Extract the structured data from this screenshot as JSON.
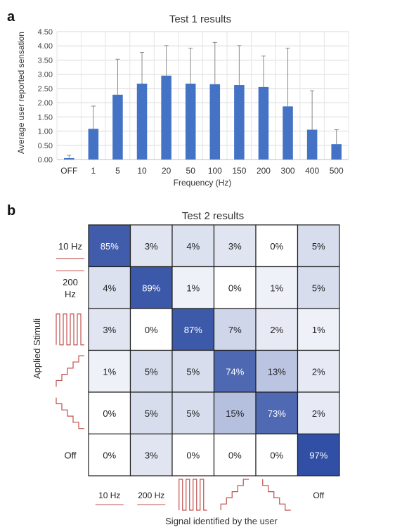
{
  "panel_labels": {
    "a": "a",
    "b": "b"
  },
  "chart_data": [
    {
      "type": "bar",
      "title": "Test 1 results",
      "xlabel": "Frequency (Hz)",
      "ylabel": "Average user reported sensation",
      "categories": [
        "OFF",
        "1",
        "5",
        "10",
        "20",
        "50",
        "100",
        "150",
        "200",
        "300",
        "400",
        "500"
      ],
      "values": [
        0.05,
        1.08,
        2.28,
        2.67,
        2.95,
        2.67,
        2.65,
        2.62,
        2.55,
        1.87,
        1.05,
        0.54
      ],
      "error_upper": [
        0.15,
        1.88,
        3.53,
        3.77,
        4.01,
        3.92,
        4.12,
        4.01,
        3.64,
        3.92,
        2.42,
        1.05
      ],
      "ylim": [
        0,
        4.5
      ],
      "yticks": [
        "0.00",
        "0.50",
        "1.00",
        "1.50",
        "2.00",
        "2.50",
        "3.00",
        "3.50",
        "4.00",
        "4.50"
      ],
      "grid": true,
      "bar_color": "#4472c4"
    },
    {
      "type": "heatmap",
      "title": "Test 2 results",
      "xlabel": "Signal identified by the user",
      "ylabel": "Applied Stimuli",
      "row_labels": [
        "10 Hz",
        "200 Hz",
        "square-wave-icon",
        "ascending-staircase-icon",
        "descending-staircase-icon",
        "Off"
      ],
      "col_labels": [
        "10 Hz",
        "200 Hz",
        "square-wave-icon",
        "ascending-staircase-icon",
        "descending-staircase-icon",
        "Off"
      ],
      "values": [
        [
          85,
          3,
          4,
          3,
          0,
          5
        ],
        [
          4,
          89,
          1,
          0,
          1,
          5
        ],
        [
          3,
          0,
          87,
          7,
          2,
          1
        ],
        [
          1,
          5,
          5,
          74,
          13,
          2
        ],
        [
          0,
          5,
          5,
          15,
          73,
          2
        ],
        [
          0,
          3,
          0,
          0,
          0,
          97
        ]
      ],
      "unit": "%",
      "color_low": "#ffffff",
      "color_high": "#2e4da3"
    }
  ]
}
